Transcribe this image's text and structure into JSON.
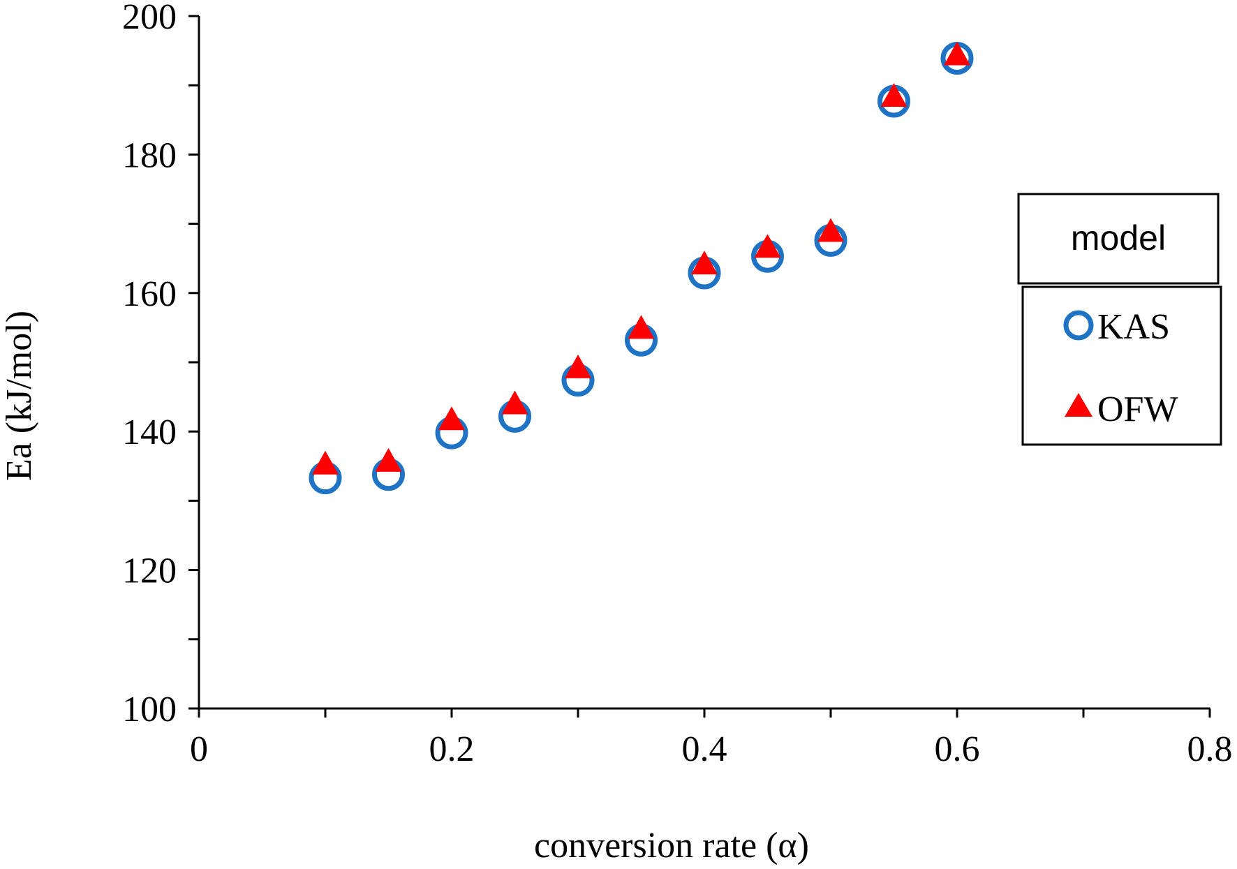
{
  "chart_data": {
    "type": "scatter",
    "title": "",
    "xlabel": "conversion rate (α)",
    "ylabel": "Ea (kJ/mol)",
    "xlim": [
      0,
      0.8
    ],
    "ylim": [
      100,
      200
    ],
    "xticks": [
      0,
      0.2,
      0.4,
      0.6,
      0.8
    ],
    "xtick_labels": [
      "0",
      "0.2",
      "0.4",
      "0.6",
      "0.8"
    ],
    "x_minor_ticks": [
      0.1,
      0.3,
      0.5,
      0.7
    ],
    "yticks": [
      100,
      120,
      140,
      160,
      180,
      200
    ],
    "ytick_labels": [
      "100",
      "120",
      "140",
      "160",
      "180",
      "200"
    ],
    "y_minor_ticks": [
      110,
      130,
      150,
      170,
      190
    ],
    "grid": false,
    "legend": {
      "title": "model",
      "position": "right"
    },
    "series": [
      {
        "name": "KAS",
        "marker": "circle-open",
        "color": "#1f73c4",
        "x": [
          0.1,
          0.15,
          0.2,
          0.25,
          0.3,
          0.35,
          0.4,
          0.45,
          0.5,
          0.55,
          0.6
        ],
        "y": [
          133.3,
          133.8,
          139.8,
          142.2,
          147.4,
          153.2,
          162.9,
          165.3,
          167.6,
          187.7,
          193.9
        ]
      },
      {
        "name": "OFW",
        "marker": "triangle-filled",
        "color": "#ff0000",
        "x": [
          0.1,
          0.15,
          0.2,
          0.25,
          0.3,
          0.35,
          0.4,
          0.45,
          0.5,
          0.55,
          0.6
        ],
        "y": [
          135.0,
          135.4,
          141.4,
          143.7,
          148.9,
          154.6,
          163.9,
          166.3,
          168.6,
          188.1,
          194.1
        ]
      }
    ]
  }
}
